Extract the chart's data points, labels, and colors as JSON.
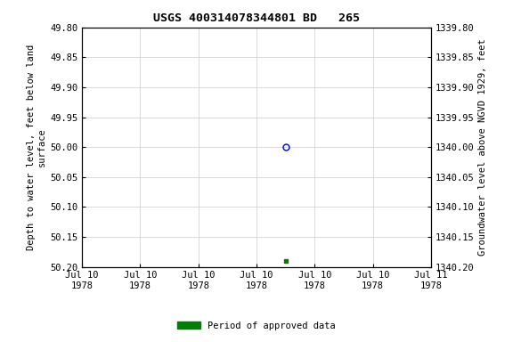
{
  "title": "USGS 400314078344801 BD   265",
  "ylabel_left": "Depth to water level, feet below land\nsurface",
  "ylabel_right": "Groundwater level above NGVD 1929, feet",
  "ylim_left": [
    49.8,
    50.2
  ],
  "ylim_right_top": 1340.2,
  "ylim_right_bottom": 1339.8,
  "yticks_left": [
    49.8,
    49.85,
    49.9,
    49.95,
    50.0,
    50.05,
    50.1,
    50.15,
    50.2
  ],
  "yticks_right": [
    1340.2,
    1340.15,
    1340.1,
    1340.05,
    1340.0,
    1339.95,
    1339.9,
    1339.85,
    1339.8
  ],
  "blue_point_x": 3.5,
  "blue_point_y": 50.0,
  "green_point_x": 3.5,
  "green_point_y": 50.19,
  "xlim": [
    0,
    6
  ],
  "xtick_positions": [
    0,
    1,
    2,
    3,
    4,
    5,
    6
  ],
  "xtick_labels": [
    "Jul 10\n1978",
    "Jul 10\n1978",
    "Jul 10\n1978",
    "Jul 10\n1978",
    "Jul 10\n1978",
    "Jul 10\n1978",
    "Jul 11\n1978"
  ],
  "background_color": "#ffffff",
  "grid_color": "#cccccc",
  "blue_circle_color": "#0000cc",
  "green_square_color": "#008000",
  "legend_label": "Period of approved data",
  "title_fontsize": 9.5,
  "axis_label_fontsize": 7.5,
  "tick_fontsize": 7.5
}
